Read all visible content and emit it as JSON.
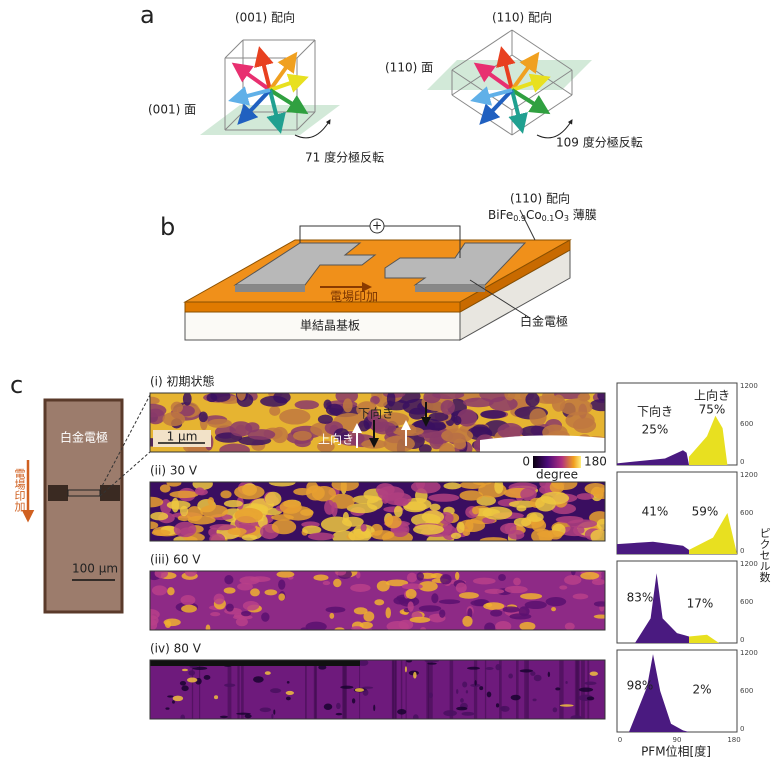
{
  "panel_a": {
    "label": "a",
    "left": {
      "title": "(001) 配向",
      "plane": "(001) 面",
      "switch": "71 度分極反転"
    },
    "right": {
      "title": "(110) 配向",
      "plane": "(110) 面",
      "switch": "109 度分極反転"
    }
  },
  "panel_b": {
    "label": "b",
    "source": "+",
    "orientation": "(110) 配向",
    "film": [
      "BiFe",
      "0.9",
      "Co",
      "0.1",
      "O",
      "3",
      " 薄膜"
    ],
    "field": "電場印加",
    "substrate": "単結晶基板",
    "electrode": "白金電極"
  },
  "panel_c": {
    "label": "c",
    "micrograph": {
      "electrode": "白金電極",
      "field": "電場印加",
      "scale": "100 µm"
    },
    "maps": [
      {
        "label": "(i) 初期状態"
      },
      {
        "label": "(ii) 30 V"
      },
      {
        "label": "(iii) 60 V"
      },
      {
        "label": "(iv) 80 V"
      }
    ],
    "map_annotations": {
      "scale": "1 µm",
      "down": "下向き",
      "up": "上向き"
    },
    "colorbar": {
      "min": "0",
      "max": "180",
      "label": "degree"
    },
    "histograms": {
      "y_label": "ピクセル数",
      "x_label": "PFM位相[度]",
      "yticks": [
        "0",
        "600",
        "1200"
      ],
      "xticks": [
        "0",
        "90",
        "180"
      ],
      "panels": [
        {
          "down_label": "下向き",
          "down": "25%",
          "up_label": "上向き",
          "up": "75%"
        },
        {
          "down": "41%",
          "up": "59%"
        },
        {
          "down": "83%",
          "up": "17%"
        },
        {
          "down": "98%",
          "up": "2%"
        }
      ]
    }
  }
}
